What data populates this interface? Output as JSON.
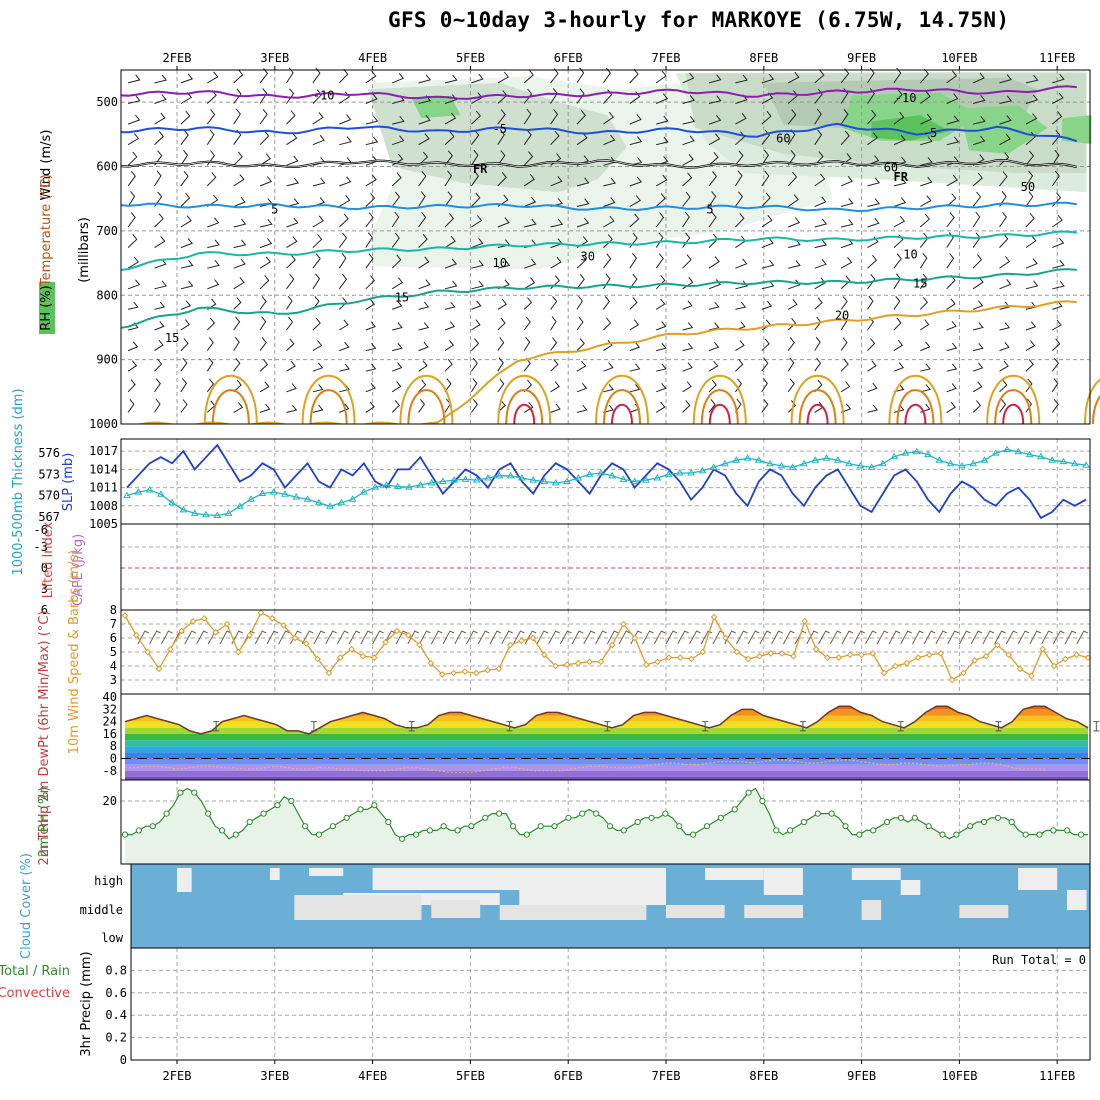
{
  "title": "GFS 0~10day 3-hourly for MARKOYE (6.75W, 14.75N)",
  "colors": {
    "purple": "#8a1fb0",
    "blue": "#1f4fd8",
    "sky": "#1e90dd",
    "teal": "#19b8a6",
    "green_teal": "#17a58a",
    "yellow": "#e0a020",
    "orange": "#e07d10",
    "red": "#d81f3f",
    "slp": "#1f3fd0",
    "thick": "#23b5c0",
    "wind10": "#e49a2a",
    "rh2m": "#2e8b2e",
    "cloud": "#6baed6",
    "cloud_clear": "#eeeeee"
  },
  "chart_data": [
    {
      "id": "upper_air",
      "type": "heatmap",
      "title": "Temperature/Wind/RH cross-section",
      "ylabel": "(millibars)",
      "side_labels": [
        "Wind (m/s)",
        "Temperature (°C)",
        "RH (%)"
      ],
      "x_tick_labels": [
        "2FEB",
        "3FEB",
        "4FEB",
        "5FEB",
        "6FEB",
        "7FEB",
        "8FEB",
        "9FEB",
        "10FEB",
        "11FEB"
      ],
      "y_ticks": [
        500,
        600,
        700,
        800,
        900,
        1000
      ],
      "ylim": [
        450,
        1000
      ],
      "isotherms": [
        {
          "label": "-10",
          "level_mb": [
            488,
            484,
            492,
            486,
            494,
            490,
            488,
            482,
            490,
            484,
            480,
            486,
            476
          ],
          "color_key": "purple"
        },
        {
          "label": "-5",
          "level_mb": [
            545,
            540,
            548,
            538,
            546,
            540,
            548,
            542,
            552,
            536,
            548,
            540,
            560
          ],
          "color_key": "blue"
        },
        {
          "label": "0",
          "level_mb": [
            598,
            594,
            600,
            592,
            596,
            598,
            592,
            600,
            596,
            594,
            598,
            592,
            600
          ],
          "color_key": "black"
        },
        {
          "label": "5",
          "level_mb": [
            658,
            662,
            660,
            664,
            662,
            660,
            666,
            664,
            662,
            668,
            664,
            660,
            658
          ],
          "color_key": "sky"
        },
        {
          "label": "10",
          "level_mb": [
            760,
            735,
            736,
            730,
            728,
            722,
            720,
            718,
            712,
            714,
            710,
            708,
            702
          ],
          "color_key": "teal"
        },
        {
          "label": "15",
          "level_mb": [
            850,
            820,
            830,
            808,
            795,
            788,
            786,
            784,
            780,
            780,
            775,
            770,
            760
          ],
          "color_key": "green_teal"
        },
        {
          "label": "20",
          "level_mb": [
            1000,
            1000,
            1000,
            1000,
            1000,
            900,
            880,
            860,
            850,
            840,
            830,
            820,
            810
          ],
          "color_key": "yellow"
        }
      ],
      "contour_labels": [
        {
          "text": "-10",
          "day": 1.5,
          "mb": 488,
          "color_key": "purple"
        },
        {
          "text": "-10",
          "day": 7.45,
          "mb": 492,
          "color_key": "purple"
        },
        {
          "text": "-5",
          "day": 3.3,
          "mb": 540,
          "color_key": "blue"
        },
        {
          "text": "-5",
          "day": 7.7,
          "mb": 546,
          "color_key": "blue"
        },
        {
          "text": "FR",
          "day": 3.1,
          "mb": 602,
          "color_key": "black"
        },
        {
          "text": "FR",
          "day": 7.4,
          "mb": 615,
          "color_key": "black"
        },
        {
          "text": "5",
          "day": 1.0,
          "mb": 665,
          "color_key": "sky"
        },
        {
          "text": "5",
          "day": 5.45,
          "mb": 665,
          "color_key": "sky"
        },
        {
          "text": "10",
          "day": 3.3,
          "mb": 748,
          "color_key": "teal"
        },
        {
          "text": "10",
          "day": 7.5,
          "mb": 735,
          "color_key": "teal"
        },
        {
          "text": "15",
          "day": -0.05,
          "mb": 865,
          "color_key": "green_teal"
        },
        {
          "text": "15",
          "day": 2.3,
          "mb": 802,
          "color_key": "green_teal"
        },
        {
          "text": "15",
          "day": 7.6,
          "mb": 780,
          "color_key": "green_teal"
        },
        {
          "text": "20",
          "day": 6.8,
          "mb": 830,
          "color_key": "yellow"
        },
        {
          "text": "30",
          "day": 4.2,
          "mb": 738,
          "color_key": "gray"
        },
        {
          "text": "60",
          "day": 6.2,
          "mb": 555,
          "color_key": "gray"
        },
        {
          "text": "60",
          "day": 7.3,
          "mb": 600,
          "color_key": "gray"
        },
        {
          "text": "50",
          "day": 8.7,
          "mb": 630,
          "color_key": "gray"
        }
      ]
    },
    {
      "id": "slp_thickness",
      "type": "line",
      "left_label": "1000-500mb Thickness (dm)",
      "right_label": "SLP (mb)",
      "left_ticks": [
        567,
        570,
        573,
        576
      ],
      "right_ticks": [
        1005,
        1008,
        1011,
        1014,
        1017
      ],
      "ylim_left": [
        566,
        578
      ],
      "ylim_right": [
        1005,
        1019
      ],
      "series": [
        {
          "name": "SLP",
          "axis": "right",
          "color_key": "slp",
          "values": [
            1011,
            1013,
            1015,
            1016,
            1015,
            1017,
            1014,
            1016,
            1018,
            1015,
            1012,
            1013,
            1015,
            1014,
            1011,
            1013,
            1015,
            1012,
            1011,
            1014,
            1013,
            1015,
            1012,
            1011,
            1014,
            1014,
            1016,
            1013,
            1010,
            1012,
            1014,
            1013,
            1011,
            1014,
            1015,
            1012,
            1010,
            1013,
            1015,
            1014,
            1012,
            1010,
            1013,
            1015,
            1014,
            1011,
            1013,
            1015,
            1014,
            1012,
            1009,
            1011,
            1014,
            1013,
            1010,
            1008,
            1012,
            1014,
            1013,
            1010,
            1008,
            1011,
            1013,
            1014,
            1011,
            1008,
            1007,
            1010,
            1013,
            1014,
            1012,
            1009,
            1007,
            1010,
            1012,
            1011,
            1009,
            1008,
            1010,
            1011,
            1009,
            1006,
            1007,
            1009,
            1008,
            1009
          ]
        },
        {
          "name": "Thickness",
          "axis": "left",
          "color_key": "thick",
          "values": [
            570,
            570.5,
            570.8,
            570.2,
            569,
            568,
            567.5,
            567.3,
            567.2,
            567.5,
            568.5,
            569.5,
            570.3,
            570.5,
            570.2,
            569.8,
            569.5,
            569,
            568.5,
            569,
            569.5,
            570.5,
            571.2,
            571.5,
            571.3,
            571.2,
            571.5,
            571.8,
            572,
            572.2,
            572.3,
            572.2,
            572.5,
            572.8,
            572.8,
            572.5,
            572.2,
            572,
            571.8,
            572,
            572.5,
            573,
            573.2,
            572.8,
            572.3,
            572,
            572.2,
            572.5,
            573,
            573.2,
            573.2,
            573.5,
            574,
            574.5,
            575,
            575.3,
            575,
            574.5,
            574.2,
            574,
            574.5,
            575,
            575.3,
            575,
            574.5,
            574.2,
            574,
            574.5,
            575.5,
            576,
            576.2,
            575.8,
            575,
            574.5,
            574.2,
            574.5,
            575,
            576,
            576.5,
            576.2,
            575.8,
            575.5,
            575,
            574.8,
            574.5,
            574.3
          ]
        }
      ]
    },
    {
      "id": "cape_li",
      "type": "line",
      "left_label": "Lifted Index",
      "right_label": "CAPE (J/kg)",
      "left_ticks": [
        "-6",
        "-3",
        "0",
        "3",
        "6"
      ],
      "series": []
    },
    {
      "id": "wind10m",
      "type": "line",
      "label": "10m Wind Speed & Barbs (m/s)",
      "y_ticks": [
        3,
        4,
        5,
        6,
        7,
        8
      ],
      "ylim": [
        2,
        8
      ],
      "series": [
        {
          "name": "10m Wind Speed",
          "color_key": "wind10",
          "values": [
            7.6,
            6.2,
            5.0,
            3.8,
            5.2,
            6.5,
            7.2,
            7.4,
            6.4,
            7.0,
            5.0,
            6.2,
            7.8,
            7.4,
            6.9,
            6.0,
            5.6,
            4.5,
            3.5,
            4.6,
            5.2,
            4.7,
            4.6,
            5.7,
            6.5,
            6.2,
            5.5,
            4.2,
            3.4,
            3.5,
            3.6,
            3.5,
            3.7,
            3.8,
            5.5,
            5.8,
            6.0,
            4.8,
            4.0,
            4.1,
            4.2,
            4.3,
            4.3,
            5.5,
            7.0,
            6.0,
            4.1,
            4.3,
            4.6,
            4.6,
            4.5,
            5.0,
            7.5,
            6.0,
            5.0,
            4.5,
            4.7,
            4.9,
            4.9,
            4.7,
            7.2,
            5.2,
            4.6,
            4.6,
            4.8,
            4.8,
            4.9,
            3.5,
            4.0,
            4.2,
            4.6,
            4.8,
            4.9,
            3.0,
            3.5,
            4.4,
            4.7,
            5.5,
            4.8,
            3.8,
            3.3,
            5.2,
            4.0,
            4.5,
            4.8,
            4.6
          ]
        }
      ]
    },
    {
      "id": "temp2m",
      "type": "area",
      "label": "2m Temp 2m DewPt (6hr Min/Max) (°C)",
      "y_ticks": [
        -8,
        0,
        8,
        16,
        24,
        32,
        40
      ],
      "ylim": [
        -14,
        42
      ],
      "series": [
        {
          "name": "2m Temp",
          "values": [
            24,
            26,
            28,
            26,
            24,
            22,
            18,
            16,
            18,
            24,
            26,
            28,
            26,
            24,
            22,
            18,
            18,
            16,
            20,
            24,
            26,
            28,
            30,
            28,
            26,
            22,
            20,
            20,
            22,
            28,
            30,
            30,
            28,
            26,
            24,
            22,
            20,
            22,
            28,
            30,
            30,
            28,
            26,
            24,
            22,
            20,
            22,
            28,
            30,
            30,
            28,
            26,
            24,
            22,
            20,
            22,
            28,
            32,
            32,
            28,
            26,
            24,
            22,
            20,
            24,
            30,
            34,
            34,
            30,
            28,
            24,
            22,
            20,
            24,
            30,
            34,
            34,
            30,
            28,
            24,
            22,
            20,
            24,
            32,
            34,
            34,
            30,
            26,
            24,
            20
          ]
        },
        {
          "name": "2m DewPt",
          "values": [
            -6,
            -6,
            -5,
            -5,
            -6,
            -7,
            -6,
            -5,
            -5,
            -6,
            -6,
            -7,
            -7,
            -6,
            -5,
            -6,
            -7,
            -7,
            -6,
            -6,
            -7,
            -7,
            -8,
            -8,
            -8,
            -7,
            -6,
            -6,
            -7,
            -8,
            -9,
            -9,
            -9,
            -8,
            -7,
            -6,
            -6,
            -7,
            -8,
            -8,
            -8,
            -7,
            -6,
            -5,
            -5,
            -6,
            -6,
            -6,
            -5,
            -4,
            -3,
            -3,
            -4,
            -4,
            -3,
            -2,
            -2,
            -2,
            -3,
            -2,
            -1,
            -1,
            -2,
            -3,
            -3,
            -2,
            -1,
            -1,
            -2,
            -3,
            -4,
            -4,
            -3,
            -3,
            -4,
            -5,
            -5,
            -4,
            -4,
            -3,
            -3,
            -4,
            -6,
            -7,
            -7,
            -7
          ]
        }
      ]
    },
    {
      "id": "rh2m",
      "type": "area",
      "label": "2m RH (%)",
      "y_ticks": [
        20
      ],
      "ylim": [
        5,
        25
      ],
      "series": [
        {
          "name": "2m RH",
          "color_key": "rh2m",
          "values": [
            12,
            12,
            13,
            14,
            14,
            15,
            17,
            19,
            22,
            23,
            22,
            20,
            17,
            14,
            13,
            11,
            12,
            13,
            15,
            16,
            17,
            18,
            19,
            21,
            20,
            17,
            14,
            12,
            12,
            13,
            14,
            15,
            16,
            17,
            18,
            18,
            19,
            17,
            15,
            12,
            11,
            12,
            12,
            13,
            13,
            13,
            14,
            13,
            13,
            14,
            14,
            15,
            16,
            17,
            17,
            17,
            14,
            12,
            12,
            13,
            14,
            14,
            14,
            15,
            16,
            16,
            17,
            18,
            17,
            16,
            14,
            13,
            13,
            14,
            15,
            16,
            16,
            16,
            17,
            16,
            14,
            12,
            12,
            13,
            14,
            15,
            16,
            17,
            18,
            20,
            22,
            23,
            20,
            17,
            13,
            12,
            13,
            14,
            15,
            16,
            17,
            17,
            17,
            16,
            14,
            12,
            12,
            13,
            13,
            14,
            15,
            16,
            16,
            15,
            16,
            15,
            14,
            13,
            12,
            11,
            12,
            13,
            14,
            15,
            15,
            16,
            16,
            16,
            15,
            13,
            12,
            12,
            12,
            13,
            13,
            13,
            13,
            12,
            12,
            12
          ]
        }
      ]
    },
    {
      "id": "cloud",
      "type": "heatmap",
      "label": "Cloud Cover (%)",
      "row_labels": [
        "high",
        "middle",
        "low"
      ]
    },
    {
      "id": "precip",
      "type": "bar",
      "label": "3hr Precip (mm)",
      "side_labels": [
        "Total / Rain",
        "Convective"
      ],
      "y_ticks": [
        "0",
        "0.2",
        "0.4",
        "0.6",
        "0.8"
      ],
      "ylim": [
        0,
        1
      ],
      "run_total": "Run Total = 0",
      "values": []
    }
  ]
}
